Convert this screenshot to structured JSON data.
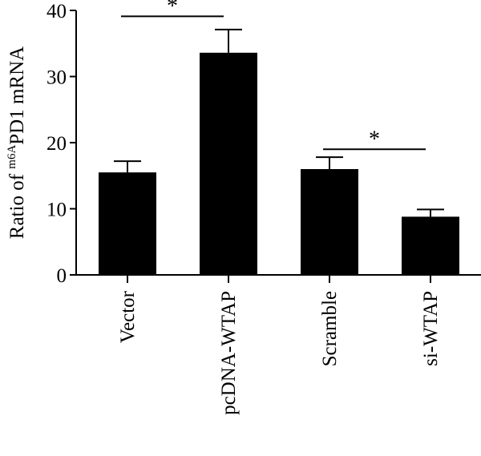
{
  "chart_data": {
    "type": "bar",
    "title": "",
    "xlabel": "",
    "ylabel": {
      "prefix": "Ratio of ",
      "superscript": "m6A",
      "suffix": "PD1 mRNA"
    },
    "ylim": [
      0,
      40
    ],
    "yticks": [
      "0",
      "10",
      "20",
      "30",
      "40"
    ],
    "categories": [
      "Vector",
      "pcDNA-WTAP",
      "Scramble",
      "si-WTAP"
    ],
    "values": [
      15.5,
      33.6,
      16.0,
      8.8
    ],
    "errors": [
      1.7,
      3.5,
      1.8,
      1.1
    ],
    "bar_color": "#000000",
    "grid": false,
    "significance": [
      {
        "from": 0,
        "to": 1,
        "label": "*",
        "level": 39.1
      },
      {
        "from": 2,
        "to": 3,
        "label": "*",
        "level": 19.0
      }
    ]
  }
}
